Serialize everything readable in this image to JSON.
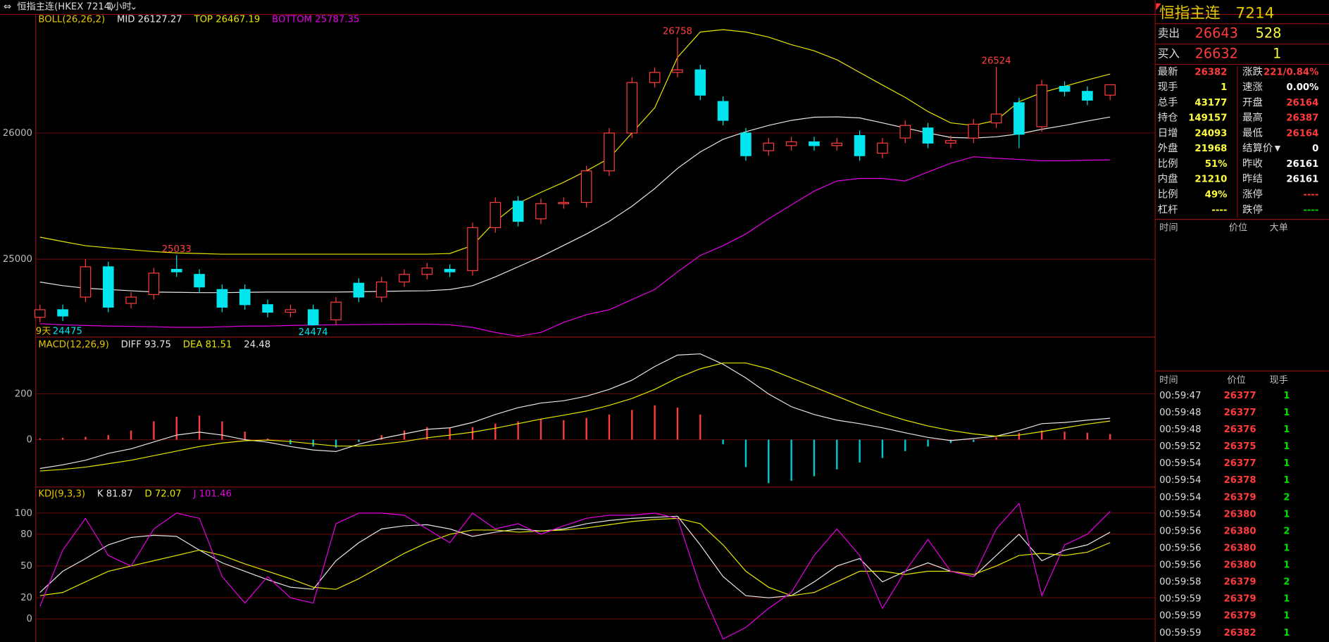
{
  "header": {
    "symbol": "恒指主连(HKEX 7214)",
    "period": "1小时"
  },
  "price_chart": {
    "type": "candlestick",
    "ylim": [
      24383,
      26933
    ],
    "yticks": [
      26000,
      25000
    ],
    "open": [
      24540,
      24600,
      24700,
      24940,
      24650,
      24720,
      24920,
      24880,
      24760,
      24760,
      24640,
      24580,
      24600,
      24520,
      24810,
      24700,
      24820,
      24880,
      24920,
      24910,
      25250,
      25460,
      25320,
      25440,
      25450,
      25700,
      26000,
      26400,
      26480,
      26500,
      26250,
      26000,
      25860,
      25900,
      25930,
      25900,
      25980,
      25840,
      25960,
      26040,
      25920,
      25960,
      26080,
      26240,
      26050,
      26370,
      26330,
      26300
    ],
    "high": [
      24640,
      24640,
      25000,
      24980,
      24740,
      24930,
      25033,
      24920,
      24800,
      24800,
      24680,
      24640,
      24640,
      24700,
      24850,
      24860,
      24920,
      24970,
      24960,
      25290,
      25490,
      25500,
      25480,
      25490,
      25740,
      26040,
      26440,
      26520,
      26758,
      26540,
      26290,
      26040,
      25960,
      25970,
      25970,
      25960,
      26020,
      25960,
      26100,
      26080,
      25980,
      26110,
      26524,
      26280,
      26420,
      26410,
      26370,
      26387
    ],
    "low": [
      24500,
      24510,
      24660,
      24580,
      24610,
      24680,
      24860,
      24740,
      24580,
      24600,
      24540,
      24540,
      24474,
      24480,
      24660,
      24660,
      24780,
      24840,
      24860,
      24870,
      25210,
      25260,
      25280,
      25400,
      25410,
      25660,
      25960,
      26360,
      26440,
      26260,
      26060,
      25780,
      25820,
      25860,
      25860,
      25860,
      25780,
      25800,
      25920,
      25880,
      25880,
      25920,
      26040,
      25880,
      26010,
      26290,
      26220,
      26260
    ],
    "close": [
      24600,
      24550,
      24940,
      24620,
      24700,
      24890,
      24900,
      24780,
      24620,
      24640,
      24580,
      24600,
      24480,
      24660,
      24700,
      24820,
      24880,
      24930,
      24900,
      25250,
      25450,
      25300,
      25440,
      25450,
      25700,
      26000,
      26400,
      26480,
      26500,
      26300,
      26100,
      25820,
      25920,
      25930,
      25900,
      25920,
      25820,
      25920,
      26060,
      25920,
      25940,
      26070,
      26150,
      25990,
      26380,
      26330,
      26260,
      26382
    ],
    "up_color": "#ff3c3c",
    "down_color": "#00e5ee",
    "indicator": "BOLL(26,26,2)",
    "series": [
      {
        "name": "MID 26127.27",
        "color": "#e6e6e6",
        "values": [
          24819,
          24790,
          24770,
          24760,
          24750,
          24740,
          24738,
          24735,
          24735,
          24738,
          24740,
          24740,
          24740,
          24740,
          24742,
          24745,
          24748,
          24750,
          24760,
          24790,
          24860,
          24940,
          25020,
          25110,
          25200,
          25300,
          25420,
          25560,
          25720,
          25850,
          25950,
          26010,
          26060,
          26100,
          26125,
          26128,
          26120,
          26080,
          26040,
          26000,
          25965,
          25960,
          25970,
          25993,
          26030,
          26060,
          26095,
          26127
        ]
      },
      {
        "name": "TOP 26467.19",
        "color": "#e6e600",
        "values": [
          25175,
          25140,
          25107,
          25090,
          25075,
          25060,
          25050,
          25045,
          25040,
          25040,
          25040,
          25040,
          25040,
          25040,
          25040,
          25040,
          25040,
          25040,
          25045,
          25110,
          25300,
          25443,
          25530,
          25610,
          25700,
          25800,
          26000,
          26200,
          26600,
          26800,
          26819,
          26800,
          26760,
          26700,
          26651,
          26580,
          26480,
          26380,
          26282,
          26170,
          26080,
          26060,
          26100,
          26248,
          26320,
          26370,
          26420,
          26467
        ]
      },
      {
        "name": "BOTTOM 25787.35",
        "color": "#e600e6",
        "values": [
          24490,
          24480,
          24475,
          24470,
          24468,
          24465,
          24460,
          24460,
          24465,
          24470,
          24470,
          24475,
          24478,
          24480,
          24482,
          24484,
          24486,
          24486,
          24480,
          24460,
          24420,
          24390,
          24420,
          24500,
          24560,
          24600,
          24680,
          24760,
          24900,
          25030,
          25107,
          25200,
          25320,
          25430,
          25540,
          25620,
          25640,
          25640,
          25620,
          25690,
          25760,
          25812,
          25800,
          25790,
          25780,
          25780,
          25785,
          25787
        ]
      }
    ],
    "annotations": [
      {
        "label": "26758",
        "value": 26758
      },
      {
        "label": "26524",
        "value": 26524
      },
      {
        "label": "25033",
        "value": 25033
      },
      {
        "label": "24474",
        "value": 24474
      }
    ],
    "range_note": [
      "9天",
      "24475"
    ]
  },
  "macd_chart": {
    "type": "line",
    "ylim": [
      -207,
      441
    ],
    "yticks": [
      200,
      0
    ],
    "indicator": "MACD(12,26,9)",
    "series": [
      {
        "name": "DIFF 93.75",
        "color": "#e6e6e6",
        "values": [
          -126,
          -110,
          -90,
          -60,
          -40,
          -10,
          20,
          33,
          20,
          0,
          -11,
          -30,
          -45,
          -52,
          -20,
          5,
          25,
          45,
          52,
          75,
          110,
          140,
          160,
          170,
          190,
          220,
          260,
          320,
          370,
          375,
          330,
          270,
          200,
          144,
          110,
          85,
          70,
          52,
          30,
          10,
          -4,
          5,
          15,
          40,
          70,
          75,
          85,
          93.75
        ]
      },
      {
        "name": "DEA 81.51",
        "color": "#e6e600",
        "values": [
          -137,
          -130,
          -120,
          -105,
          -90,
          -70,
          -50,
          -30,
          -15,
          -5,
          -2,
          -8,
          -18,
          -28,
          -28,
          -20,
          -8,
          8,
          20,
          33,
          50,
          70,
          90,
          107,
          125,
          150,
          180,
          220,
          270,
          310,
          335,
          335,
          310,
          270,
          230,
          190,
          150,
          115,
          85,
          60,
          40,
          25,
          15,
          20,
          35,
          52,
          68,
          81.51
        ]
      }
    ],
    "histogram": {
      "name": "24.48",
      "up_color": "#ff3c3c",
      "down_color": "#00c8d2",
      "values": [
        5,
        8,
        12,
        20,
        40,
        80,
        100,
        105,
        80,
        35,
        5,
        -20,
        -30,
        -35,
        -10,
        20,
        40,
        55,
        50,
        55,
        70,
        80,
        90,
        85,
        95,
        110,
        130,
        150,
        140,
        110,
        -20,
        -120,
        -190,
        -180,
        -160,
        -130,
        -100,
        -80,
        -50,
        -30,
        -15,
        -10,
        10,
        30,
        40,
        35,
        30,
        24.48
      ]
    }
  },
  "kdj_chart": {
    "type": "line",
    "ylim": [
      -21,
      123
    ],
    "yticks": [
      100,
      80,
      50,
      20,
      0
    ],
    "indicator": "KDJ(9,3,3)",
    "series": [
      {
        "name": "K 81.87",
        "color": "#e6e6e6",
        "values": [
          25,
          45,
          57,
          70,
          77,
          79,
          78,
          65,
          53,
          45,
          37,
          30,
          28,
          55,
          72,
          85,
          88,
          89,
          85,
          78,
          82,
          85,
          83,
          85,
          90,
          93,
          95,
          96,
          97,
          70,
          40,
          22,
          20,
          22,
          35,
          50,
          57,
          35,
          45,
          53,
          45,
          40,
          60,
          80,
          55,
          65,
          70,
          81.87
        ]
      },
      {
        "name": "D 72.07",
        "color": "#e6e600",
        "values": [
          22,
          25,
          35,
          45,
          50,
          55,
          60,
          65,
          60,
          52,
          45,
          38,
          30,
          28,
          38,
          50,
          62,
          72,
          80,
          84,
          84,
          82,
          83,
          84,
          86,
          89,
          92,
          94,
          95,
          90,
          70,
          45,
          30,
          22,
          25,
          35,
          45,
          45,
          42,
          45,
          45,
          42,
          50,
          60,
          62,
          60,
          63,
          72.07
        ]
      },
      {
        "name": "J 101.46",
        "color": "#e600e6",
        "values": [
          12,
          65,
          95,
          60,
          50,
          85,
          100,
          95,
          40,
          15,
          40,
          20,
          15,
          90,
          100,
          100,
          98,
          85,
          72,
          100,
          85,
          90,
          80,
          88,
          95,
          98,
          98,
          100,
          95,
          30,
          -19,
          -8,
          10,
          25,
          60,
          85,
          60,
          10,
          45,
          75,
          45,
          40,
          85,
          109,
          22,
          70,
          80,
          101.46
        ]
      }
    ]
  },
  "quote": {
    "title": "恒指主连",
    "code": "7214",
    "ask": {
      "label": "卖出",
      "price": "26643",
      "volume": "528"
    },
    "bid": {
      "label": "买入",
      "price": "26632",
      "volume": "1"
    },
    "stats": [
      [
        "最新",
        "26382",
        "涨跌",
        "221/0.84%"
      ],
      [
        "现手",
        "1",
        "速涨",
        "0.00%"
      ],
      [
        "总手",
        "43177",
        "开盘",
        "26164"
      ],
      [
        "持仓",
        "149157",
        "最高",
        "26387"
      ],
      [
        "日增",
        "24093",
        "最低",
        "26164"
      ],
      [
        "外盘",
        "21968",
        "结算价",
        "0"
      ],
      [
        "比例",
        "51%",
        "昨收",
        "26161"
      ],
      [
        "内盘",
        "21210",
        "昨结",
        "26161"
      ],
      [
        "比例",
        "49%",
        "涨停",
        "----"
      ],
      [
        "杠杆",
        "----",
        "跌停",
        "----"
      ]
    ]
  },
  "big_orders": {
    "columns": [
      "时间",
      "价位",
      "大单"
    ]
  },
  "trades": {
    "columns": [
      "时间",
      "价位",
      "现手"
    ],
    "rows": [
      [
        "00:59:47",
        "26377",
        "1"
      ],
      [
        "00:59:48",
        "26377",
        "1"
      ],
      [
        "00:59:48",
        "26376",
        "1"
      ],
      [
        "00:59:52",
        "26375",
        "1"
      ],
      [
        "00:59:54",
        "26377",
        "1"
      ],
      [
        "00:59:54",
        "26378",
        "1"
      ],
      [
        "00:59:54",
        "26379",
        "2"
      ],
      [
        "00:59:54",
        "26380",
        "1"
      ],
      [
        "00:59:56",
        "26380",
        "2"
      ],
      [
        "00:59:56",
        "26380",
        "1"
      ],
      [
        "00:59:56",
        "26380",
        "1"
      ],
      [
        "00:59:58",
        "26379",
        "2"
      ],
      [
        "00:59:59",
        "26379",
        "1"
      ],
      [
        "00:59:59",
        "26379",
        "1"
      ],
      [
        "00:59:59",
        "26382",
        "1"
      ]
    ]
  }
}
